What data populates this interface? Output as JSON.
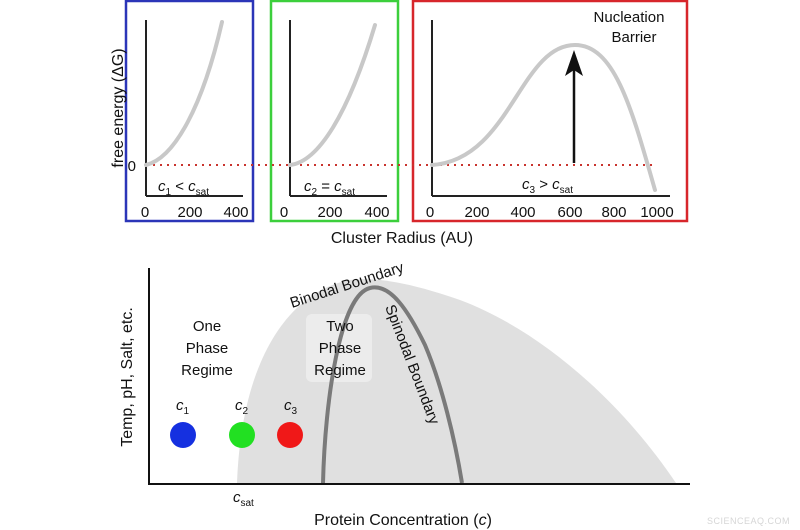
{
  "top": {
    "y_axis_title": "free energy (ΔG)",
    "zero_label": "0",
    "x_axis_title": "Cluster Radius (AU)",
    "nucleation_line1": "Nucleation",
    "nucleation_line2": "Barrier",
    "panels": [
      {
        "frame_color": "#2b35b8",
        "ticks": [
          "0",
          "200",
          "400"
        ],
        "cond": {
          "a": "c",
          "a_sub": "1",
          "op": " < ",
          "b": "c",
          "b_sub": "sat"
        }
      },
      {
        "frame_color": "#3ccf3c",
        "ticks": [
          "0",
          "200",
          "400"
        ],
        "cond": {
          "a": "c",
          "a_sub": "2",
          "op": " = ",
          "b": "c",
          "b_sub": "sat"
        }
      },
      {
        "frame_color": "#d7262b",
        "ticks": [
          "0",
          "200",
          "400",
          "600",
          "800",
          "1000"
        ],
        "cond": {
          "a": "c",
          "a_sub": "3",
          "op": " > ",
          "b": "c",
          "b_sub": "sat"
        }
      }
    ]
  },
  "bottom": {
    "y_axis_title": "Temp, pH, Salt, etc.",
    "x_axis_title_main": "Protein Concentration (",
    "x_axis_title_var": "c",
    "x_axis_title_end": ")",
    "binodal_label": "Binodal Boundary",
    "spinodal_label": "Spinodal Boundary",
    "one_phase": [
      "One",
      "Phase",
      "Regime"
    ],
    "two_phase": [
      "Two",
      "Phase",
      "Regime"
    ],
    "csat": {
      "base": "c",
      "sub": "sat"
    },
    "dots": [
      {
        "base": "c",
        "sub": "1",
        "color": "#1530e0"
      },
      {
        "base": "c",
        "sub": "2",
        "color": "#22e022"
      },
      {
        "base": "c",
        "sub": "3",
        "color": "#f01818"
      }
    ]
  },
  "watermark": "SCIENCEAQ.COM"
}
